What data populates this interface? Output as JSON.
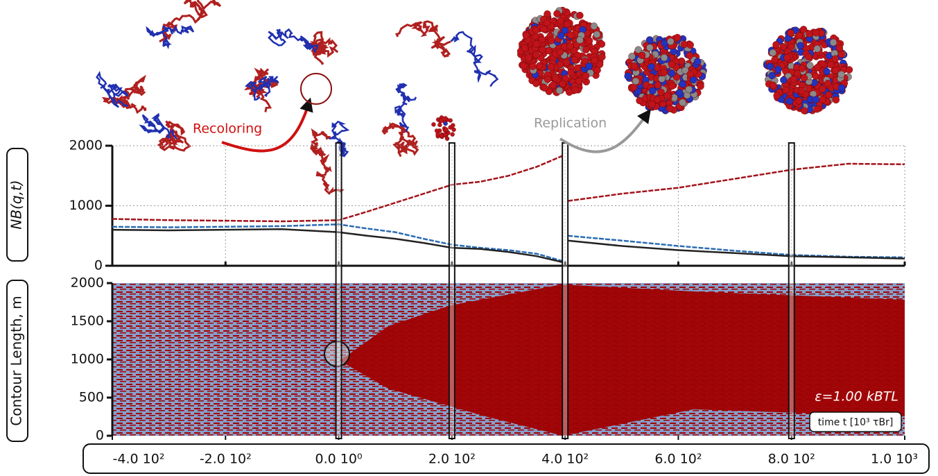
{
  "chart_data": [
    {
      "type": "line",
      "y_label": "NB(q,t)",
      "x": [
        -400,
        -300,
        -200,
        -100,
        0,
        50,
        100,
        150,
        200,
        250,
        300,
        350,
        395,
        400,
        405,
        500,
        600,
        700,
        800,
        900,
        1000
      ],
      "series": [
        {
          "color": "#a3121a",
          "dash": true,
          "values": [
            780,
            760,
            750,
            740,
            760,
            900,
            1050,
            1200,
            1350,
            1400,
            1500,
            1650,
            1830,
            null,
            1080,
            1200,
            1300,
            1450,
            1600,
            1700,
            1690
          ]
        },
        {
          "color": "#2a6cb3",
          "dash": true,
          "values": [
            650,
            640,
            650,
            660,
            690,
            620,
            560,
            450,
            350,
            300,
            260,
            200,
            80,
            null,
            500,
            420,
            330,
            250,
            180,
            150,
            140
          ]
        },
        {
          "color": "#222222",
          "dash": false,
          "values": [
            600,
            590,
            600,
            610,
            560,
            500,
            450,
            380,
            300,
            280,
            230,
            160,
            60,
            null,
            420,
            330,
            260,
            210,
            160,
            140,
            120
          ]
        }
      ],
      "xlim": [
        -400,
        1000
      ],
      "xticks": [
        -400,
        -200,
        0,
        200,
        400,
        600,
        800,
        1000
      ],
      "ylim": [
        0,
        2000
      ],
      "yticks": [
        0,
        1000,
        2000
      ],
      "grid": true,
      "highlight_times": [
        0,
        200,
        400,
        800
      ],
      "annotations": [
        "Recoloring",
        "Replication"
      ]
    },
    {
      "type": "kymograph",
      "y_label": "Contour Length, m",
      "xlim": [
        -400,
        1000
      ],
      "xticks": [
        {
          "value": -400,
          "label": "-4.0 10²"
        },
        {
          "value": -200,
          "label": "-2.0 10²"
        },
        {
          "value": 0,
          "label": "0.0 10⁰"
        },
        {
          "value": 200,
          "label": "2.0 10²"
        },
        {
          "value": 400,
          "label": "4.0 10²"
        },
        {
          "value": 600,
          "label": "6.0 10²"
        },
        {
          "value": 800,
          "label": "8.0 10²"
        },
        {
          "value": 1000,
          "label": "1.0 10³"
        }
      ],
      "ylim": [
        0,
        2000
      ],
      "yticks": [
        0,
        500,
        1000,
        1500,
        2000
      ],
      "colors": [
        "#a00000",
        "#7fa6d6"
      ],
      "annotations": [
        "ε=1.00 kBTL",
        "time t [10³ τBr]"
      ]
    }
  ]
}
